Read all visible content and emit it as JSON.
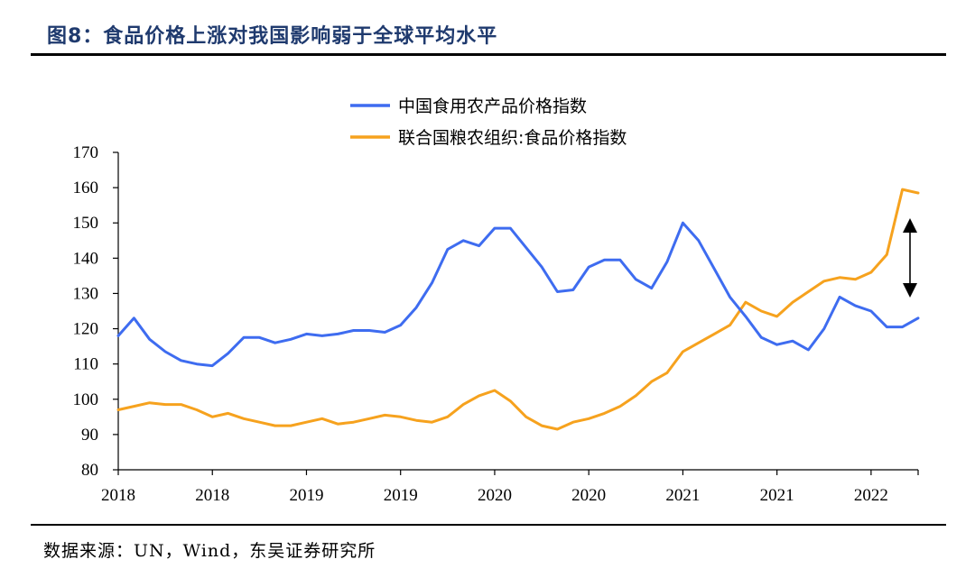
{
  "header": {
    "title": "图8：食品价格上涨对我国影响弱于全球平均水平"
  },
  "footer": {
    "source": "数据来源：UN，Wind，东吴证券研究所"
  },
  "colors": {
    "china": "#3e6cf0",
    "fao": "#f6a21e",
    "title": "#1f3a6e"
  },
  "chart_data": {
    "type": "line",
    "ylim": [
      80,
      170
    ],
    "yticks": [
      80,
      90,
      100,
      110,
      120,
      130,
      140,
      150,
      160,
      170
    ],
    "xtick_labels": [
      "2018",
      "2018",
      "2019",
      "2019",
      "2020",
      "2020",
      "2021",
      "2021",
      "2022"
    ],
    "legend_position": "top-center",
    "grid": false,
    "annotation": "double-headed arrow between the two series at the right end",
    "series": [
      {
        "name": "中国食用农产品价格指数",
        "color": "#3e6cf0",
        "values": [
          118,
          123,
          117,
          113.5,
          111,
          110,
          109.5,
          113,
          117.5,
          117.5,
          116,
          117,
          118.5,
          118,
          118.5,
          119.5,
          119.5,
          119,
          121,
          126,
          133,
          142.5,
          145,
          143.5,
          148.5,
          148.5,
          143,
          137.5,
          130.5,
          131,
          137.5,
          139.5,
          139.5,
          134,
          131.5,
          139,
          150,
          145,
          137,
          129,
          123.5,
          117.5,
          115.5,
          116.5,
          114,
          120,
          129,
          126.5,
          125,
          120.5,
          120.5,
          123
        ]
      },
      {
        "name": "联合国粮农组织:食品价格指数",
        "color": "#f6a21e",
        "values": [
          97,
          98,
          99,
          98.5,
          98.5,
          97,
          95,
          96,
          94.5,
          93.5,
          92.5,
          92.5,
          93.5,
          94.5,
          93,
          93.5,
          94.5,
          95.5,
          95,
          94,
          93.5,
          95,
          98.5,
          101,
          102.5,
          99.5,
          95,
          92.5,
          91.5,
          93.5,
          94.5,
          96,
          98,
          101,
          105,
          107.5,
          113.5,
          116,
          118.5,
          121,
          127.5,
          125,
          123.5,
          127.5,
          130.5,
          133.5,
          134.5,
          134,
          136,
          141,
          159.5,
          158.5
        ]
      }
    ]
  }
}
